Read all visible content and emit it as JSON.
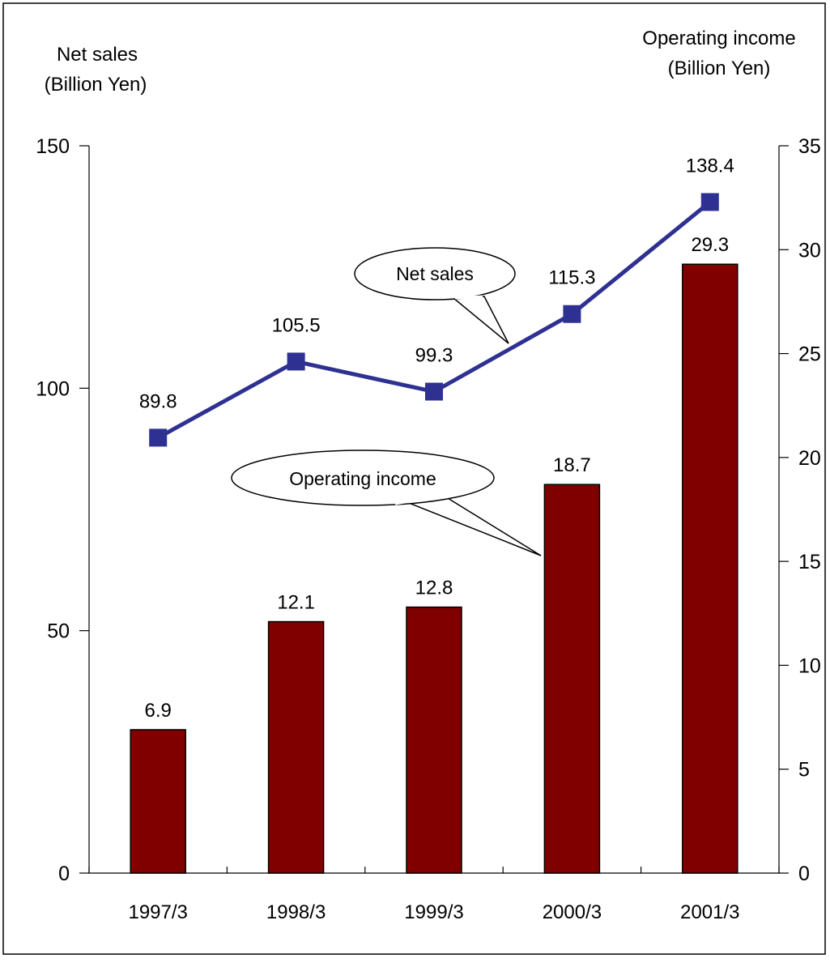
{
  "chart_data": {
    "type": "bar+line",
    "categories": [
      "1997/3",
      "1998/3",
      "1999/3",
      "2000/3",
      "2001/3"
    ],
    "left_axis": {
      "label_line1": "Net sales",
      "label_line2": "(Billion Yen)",
      "ylim": [
        0,
        150
      ],
      "ticks": [
        "0",
        "50",
        "100",
        "150"
      ]
    },
    "right_axis": {
      "label_line1": "Operating income",
      "label_line2": "(Billion Yen)",
      "ylim": [
        0,
        35
      ],
      "ticks": [
        "0",
        "5",
        "10",
        "15",
        "20",
        "25",
        "30",
        "35"
      ]
    },
    "series": [
      {
        "name": "Net sales",
        "type": "line",
        "axis": "left",
        "values": [
          89.8,
          105.5,
          99.3,
          115.3,
          138.4
        ],
        "labels": [
          "89.8",
          "105.5",
          "99.3",
          "115.3",
          "138.4"
        ],
        "color": "#2E3192"
      },
      {
        "name": "Operating income",
        "type": "bar",
        "axis": "right",
        "values": [
          6.9,
          12.1,
          12.8,
          18.7,
          29.3
        ],
        "labels": [
          "6.9",
          "12.1",
          "12.8",
          "18.7",
          "29.3"
        ],
        "color": "#800000"
      }
    ],
    "callouts": {
      "net_sales": "Net sales",
      "operating_income": "Operating income"
    },
    "grid": false,
    "legend": "none"
  }
}
